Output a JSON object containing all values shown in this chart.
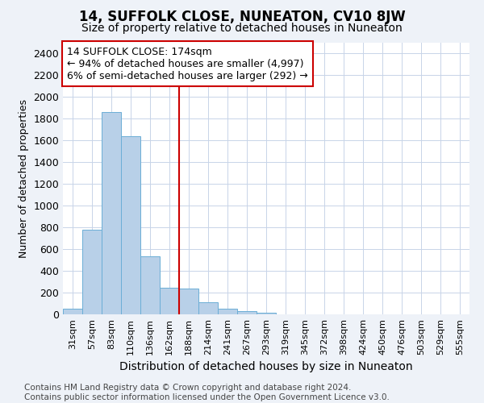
{
  "title": "14, SUFFOLK CLOSE, NUNEATON, CV10 8JW",
  "subtitle": "Size of property relative to detached houses in Nuneaton",
  "xlabel": "Distribution of detached houses by size in Nuneaton",
  "ylabel": "Number of detached properties",
  "categories": [
    "31sqm",
    "57sqm",
    "83sqm",
    "110sqm",
    "136sqm",
    "162sqm",
    "188sqm",
    "214sqm",
    "241sqm",
    "267sqm",
    "293sqm",
    "319sqm",
    "345sqm",
    "372sqm",
    "398sqm",
    "424sqm",
    "450sqm",
    "476sqm",
    "503sqm",
    "529sqm",
    "555sqm"
  ],
  "values": [
    55,
    780,
    1860,
    1640,
    530,
    245,
    240,
    110,
    50,
    30,
    15,
    0,
    0,
    0,
    0,
    0,
    0,
    0,
    0,
    0,
    0
  ],
  "bar_color": "#b8d0e8",
  "bar_edge_color": "#6baed6",
  "vline_x_index": 6,
  "vline_color": "#cc0000",
  "annotation_line1": "14 SUFFOLK CLOSE: 174sqm",
  "annotation_line2": "← 94% of detached houses are smaller (4,997)",
  "annotation_line3": "6% of semi-detached houses are larger (292) →",
  "annotation_box_color": "#ffffff",
  "annotation_box_edge": "#cc0000",
  "ylim": [
    0,
    2500
  ],
  "yticks": [
    0,
    200,
    400,
    600,
    800,
    1000,
    1200,
    1400,
    1600,
    1800,
    2000,
    2200,
    2400
  ],
  "footnote_line1": "Contains HM Land Registry data © Crown copyright and database right 2024.",
  "footnote_line2": "Contains public sector information licensed under the Open Government Licence v3.0.",
  "title_fontsize": 12,
  "subtitle_fontsize": 10,
  "xlabel_fontsize": 10,
  "ylabel_fontsize": 9,
  "ytick_fontsize": 9,
  "xtick_fontsize": 8,
  "annotation_fontsize": 9,
  "footnote_fontsize": 7.5,
  "background_color": "#eef2f8",
  "plot_bg_color": "#ffffff",
  "grid_color": "#c8d4e8"
}
